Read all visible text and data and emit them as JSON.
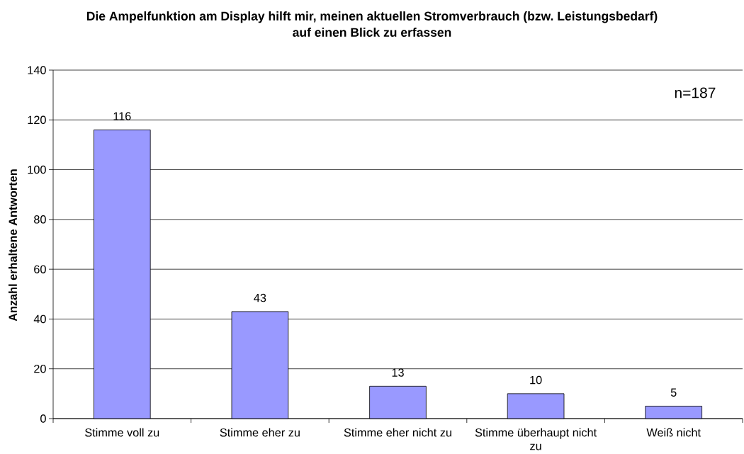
{
  "chart_data": {
    "type": "bar",
    "title": "Die Ampelfunktion am Display hilft mir, meinen aktuellen Stromverbrauch (bzw. Leistungsbedarf) auf einen Blick zu erfassen",
    "ylabel": "Anzahl erhaltene Antworten",
    "categories": [
      "Stimme voll zu",
      "Stimme eher zu",
      "Stimme eher nicht zu",
      "Stimme überhaupt nicht zu",
      "Weiß nicht"
    ],
    "values": [
      116,
      43,
      13,
      10,
      5
    ],
    "color": "#9999ff",
    "ylim": [
      0,
      140
    ],
    "yticks": [
      0,
      20,
      40,
      60,
      80,
      100,
      120,
      140
    ],
    "grid": "y",
    "data_labels": true,
    "annotations": [
      "n=187"
    ]
  }
}
